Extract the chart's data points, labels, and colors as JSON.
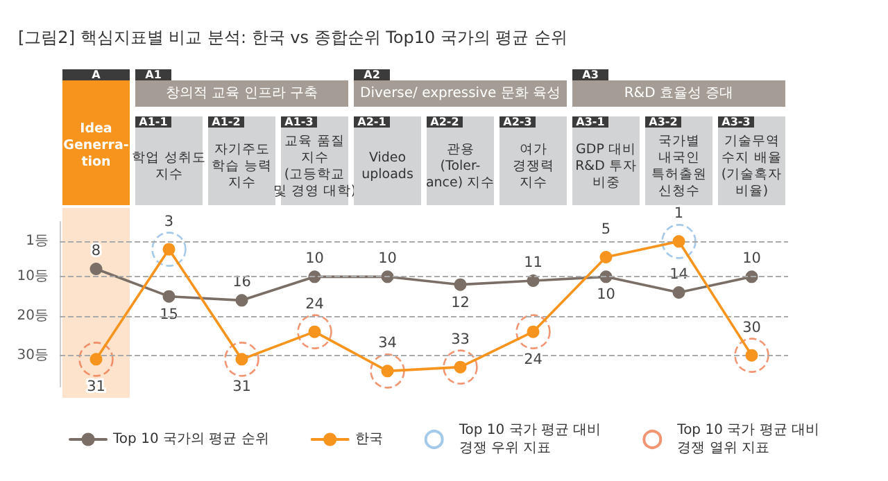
{
  "chart_data": {
    "type": "line",
    "title": "[그림2] 핵심지표별 비교 분석: 한국 vs 종합순위 Top10 국가의 평균 순위",
    "categories": [
      "A\nIdea\nGenerra-\ntion",
      "A1-1\n학업 성취도\n지수",
      "A1-2\n자기주도\n학습 능력\n지수",
      "A1-3\n교육 품질\n지수\n(고등학교\n및 경영 대학)",
      "A2-1\nVideo\nuploads",
      "A2-2\n관용\n(Toler-\nance) 지수",
      "A2-3\n여가\n경쟁력\n지수",
      "A3-1\nGDP 대비\nR&D 투자\n비중",
      "A3-2\n국가별\n내국인\n특허출원\n신청수",
      "A3-3\n기술무역\n수지 배율\n(기술혹자\n비율)"
    ],
    "annotations": [
      "A1",
      "창의적 교육 인프라 구축",
      "A2",
      "Diverse/ expressive 문화 육성",
      "A3",
      "R&D 효율성 증대"
    ],
    "series": [
      {
        "name": "Top 10 국가의 평균 순위",
        "color": "#7a6e66",
        "values": [
          8,
          15,
          16,
          10,
          10,
          12,
          11,
          10,
          14,
          10
        ]
      },
      {
        "name": "한국",
        "color": "#f7941d",
        "values": [
          31,
          3,
          31,
          24,
          34,
          33,
          24,
          5,
          1,
          30
        ]
      },
      {
        "type": "scatter",
        "name": "Top 10 국가 평균 대비\n경쟁 우위 지표",
        "color": "#8dbbe3",
        "x": [
          "A1-1\n학업 성취도\n지수",
          "A3-2\n국가별\n내국인\n특허출원\n신청수"
        ],
        "values": [
          3,
          1
        ],
        "value_labels": [
          null,
          null
        ]
      },
      {
        "type": "scatter",
        "name": "Top 10 국가 평균 대비\n경쟁 열위 지표",
        "color": "#ee7a4f",
        "x": [
          "A\nIdea\nGenerra-\ntion",
          "A1-3\n교육 품질\n지수\n(고등학교\n및 경영 대학)",
          "A1-2\n자기주도\n학습 능력\n지수",
          "A2-1\nVideo\nuploads",
          "A2-2\n관용\n(Toler-\nance) 지수",
          "A2-3\n여가\n경쟁력\n지수",
          "A3-3\n기술무역\n수지 배율\n(기술혹자\n비율)"
        ],
        "values": [
          31,
          24,
          31,
          34,
          33,
          24,
          30
        ],
        "value_labels": [
          null,
          null,
          null,
          null,
          null,
          null,
          null
        ]
      }
    ],
    "ylim": [
      38,
      -4
    ],
    "yticks": [
      {
        "value": 1,
        "label": "1등"
      },
      {
        "value": 10,
        "label": "10등"
      },
      {
        "value": 20,
        "label": "20등"
      },
      {
        "value": 30,
        "label": "30등"
      }
    ],
    "bands": [
      {
        "axis": "x",
        "from": "A\nIdea\nGenerra-\ntion",
        "to": "A\nIdea\nGenerra-\ntion",
        "color": "#fde3cc"
      }
    ],
    "grid": "y",
    "legend": "bottom",
    "marker": "circle",
    "data_labels": true,
    "tick_labels": "y"
  }
}
